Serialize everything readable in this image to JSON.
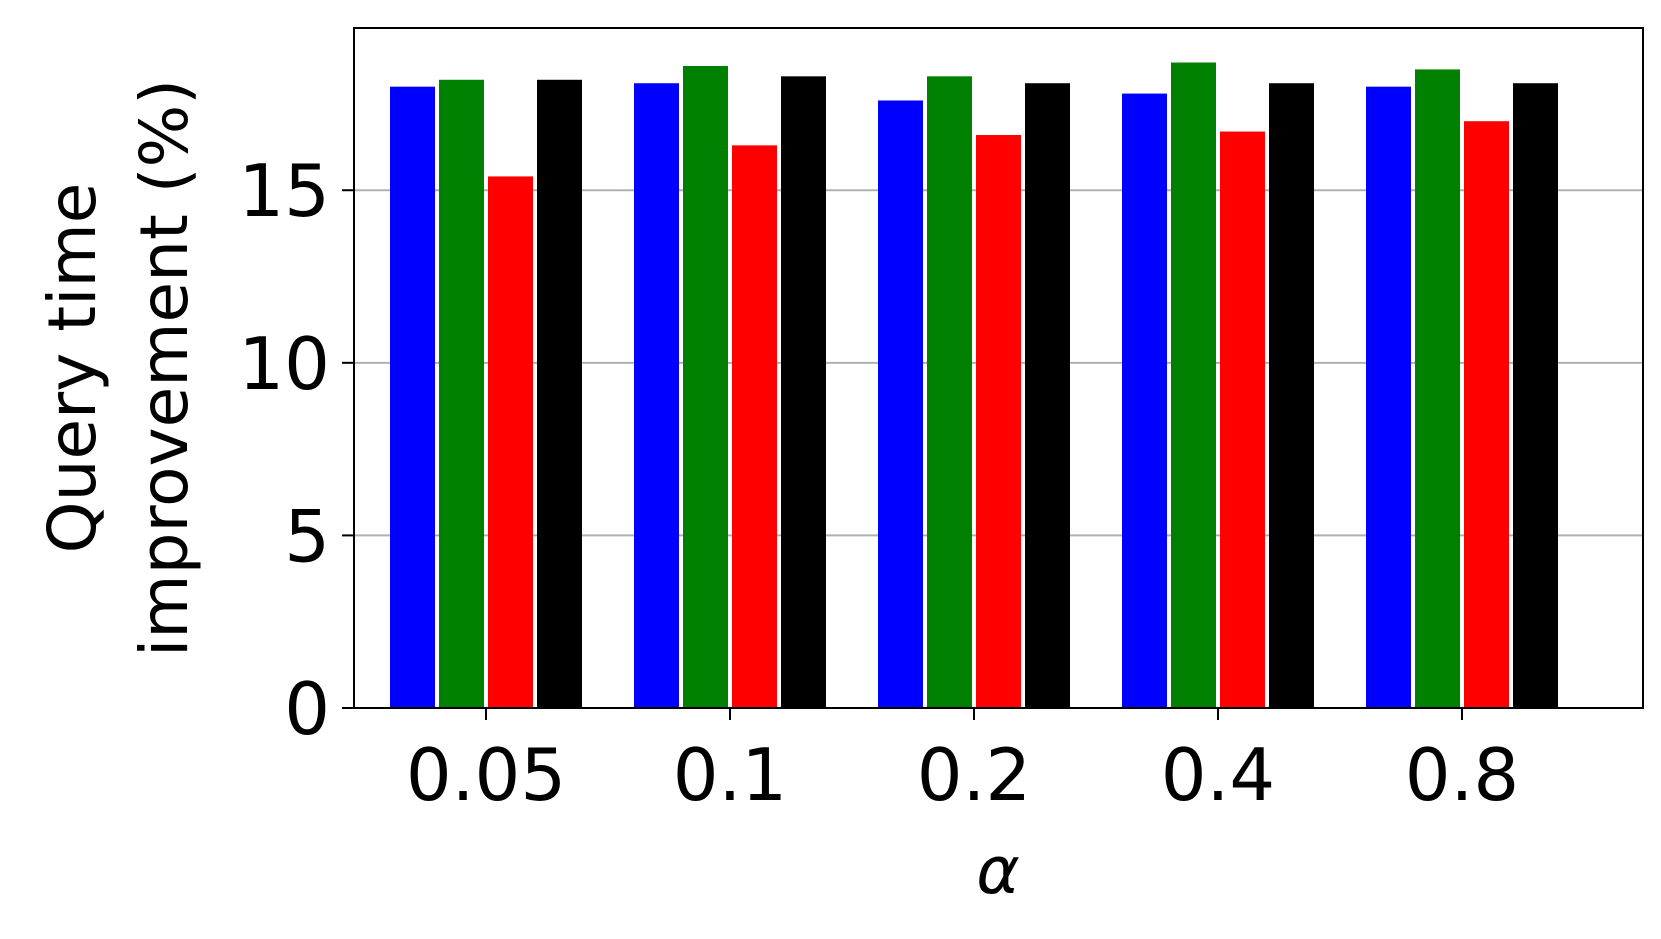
{
  "chart_data": {
    "type": "bar",
    "title": "",
    "xlabel": "α",
    "ylabel_lines": [
      "Query time",
      "improvement (%)"
    ],
    "categories": [
      "0.05",
      "0.1",
      "0.2",
      "0.4",
      "0.8"
    ],
    "series": [
      {
        "color": "#0000ff",
        "values": [
          18.0,
          18.1,
          17.6,
          17.8,
          18.0
        ]
      },
      {
        "color": "#008000",
        "values": [
          18.2,
          18.6,
          18.3,
          18.7,
          18.5
        ]
      },
      {
        "color": "#ff0000",
        "values": [
          15.4,
          16.3,
          16.6,
          16.7,
          17.0
        ]
      },
      {
        "color": "#000000",
        "values": [
          18.2,
          18.3,
          18.1,
          18.1,
          18.1
        ]
      }
    ],
    "ylim": [
      0,
      19.7
    ],
    "yticks": [
      0,
      5,
      10,
      15
    ],
    "grid": true,
    "grid_axis": "y",
    "legend": "none"
  }
}
